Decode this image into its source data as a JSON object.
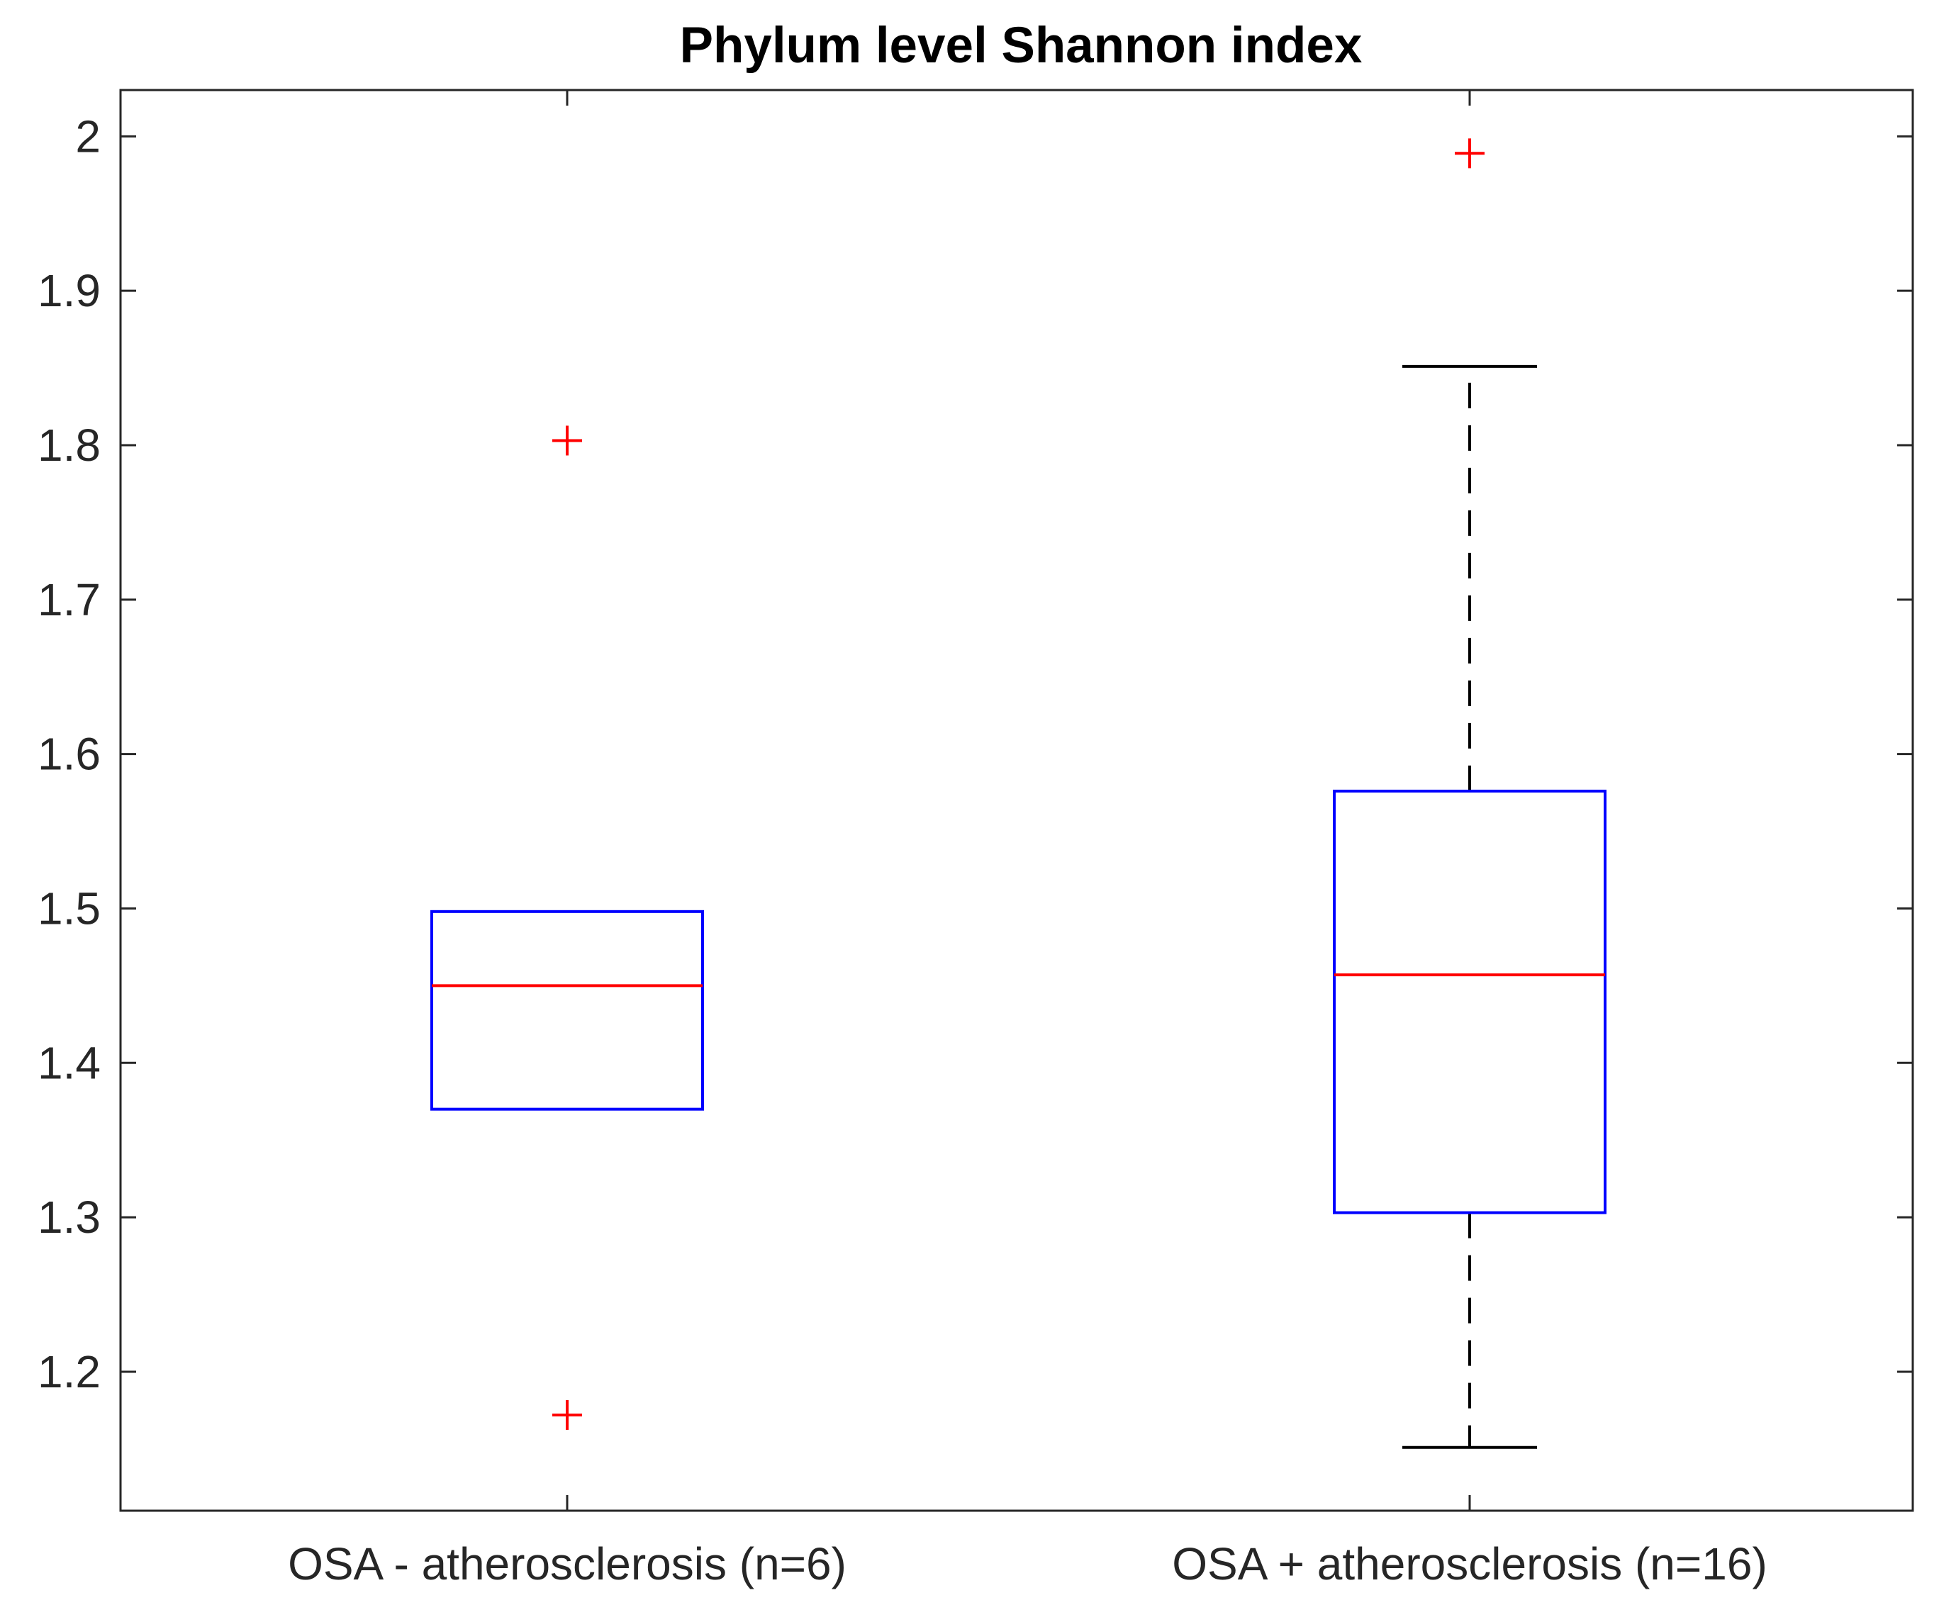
{
  "chart_data": {
    "type": "box",
    "title": "Phylum level Shannon index",
    "xlabel": "",
    "ylabel": "",
    "ylim": [
      1.11,
      2.03
    ],
    "yticks": [
      1.2,
      1.3,
      1.4,
      1.5,
      1.6,
      1.7,
      1.8,
      1.9,
      2
    ],
    "ytick_labels": [
      "1.2",
      "1.3",
      "1.4",
      "1.5",
      "1.6",
      "1.7",
      "1.8",
      "1.9",
      "2"
    ],
    "grid": false,
    "categories": [
      "OSA - atherosclerosis (n=6)",
      "OSA + atherosclerosis (n=16)"
    ],
    "boxes": [
      {
        "category": "OSA - atherosclerosis (n=6)",
        "q1": 1.37,
        "median": 1.45,
        "q3": 1.498,
        "whisker_low": 1.37,
        "whisker_high": 1.498,
        "outliers": [
          1.803,
          1.172
        ]
      },
      {
        "category": "OSA + atherosclerosis (n=16)",
        "q1": 1.303,
        "median": 1.457,
        "q3": 1.576,
        "whisker_low": 1.151,
        "whisker_high": 1.851,
        "outliers": [
          1.989
        ]
      }
    ],
    "colors": {
      "box": "#0000ff",
      "median": "#ff0000",
      "whisker": "#000000",
      "outlier": "#ff0000",
      "axis": "#262626"
    }
  }
}
